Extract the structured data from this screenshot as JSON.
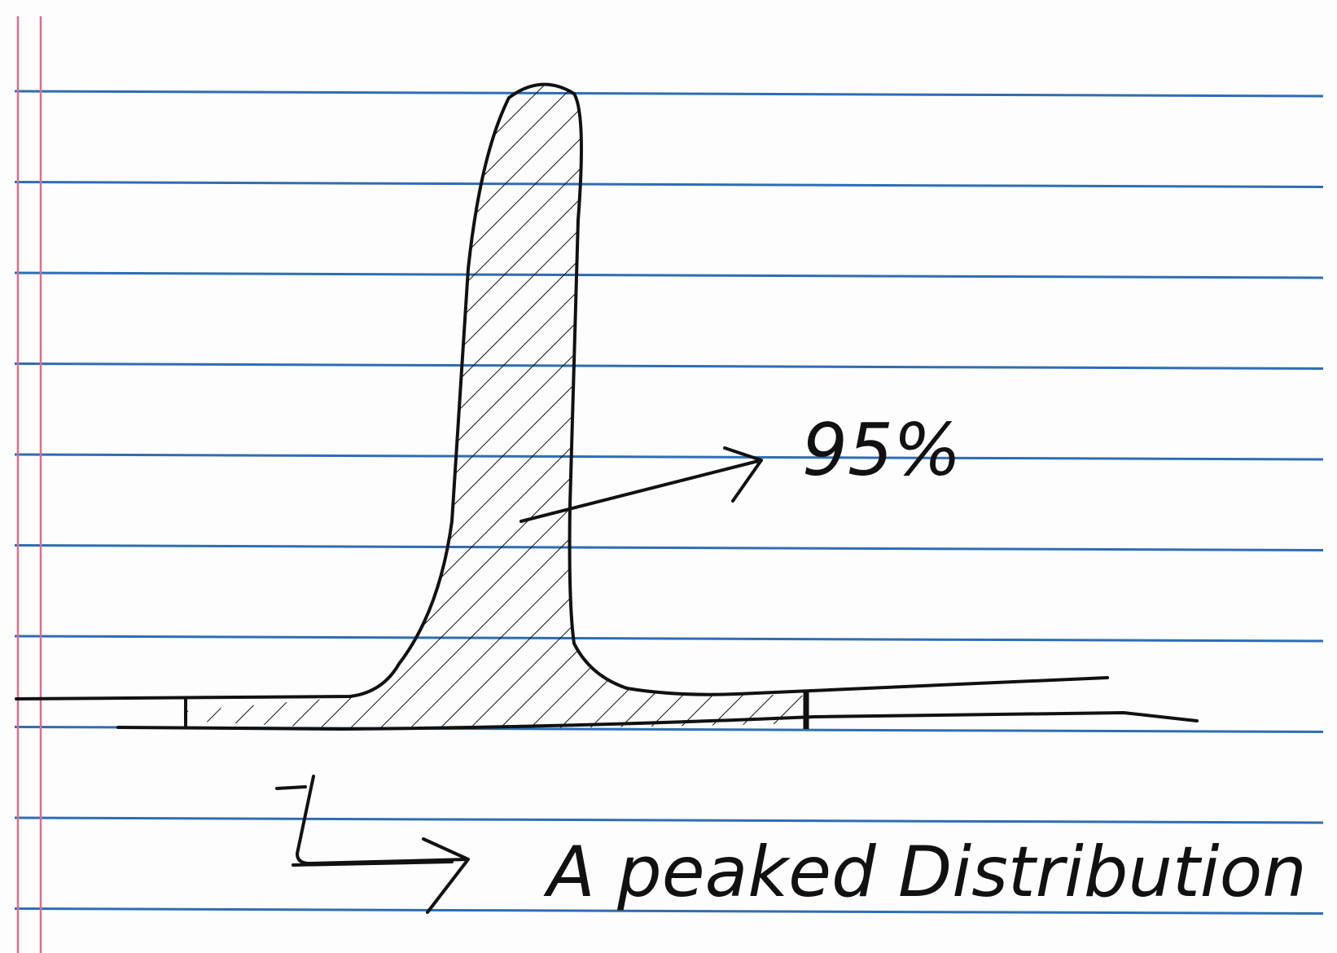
{
  "sketch": {
    "peak_label": "95%",
    "caption": "A peaked Distribution"
  },
  "paper": {
    "ruled_line_count": 10,
    "rule_color": "#2f6db3",
    "margin_color": "#e36b8a",
    "ink_color": "#111111"
  }
}
